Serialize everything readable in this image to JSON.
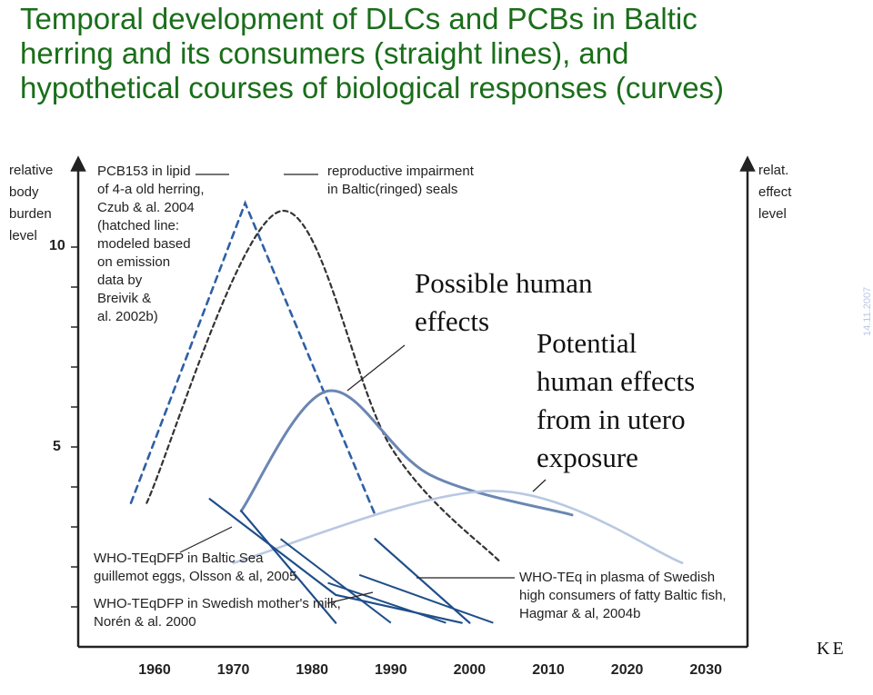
{
  "slide": {
    "title_lines": [
      "Temporal development of DLCs and PCBs in Baltic",
      "herring and its consumers (straight lines), and",
      "hypothetical courses of biological responses (curves)"
    ],
    "date": "14.11.2007",
    "logo": "ΚΕ",
    "colors": {
      "title": "#1a6e1a",
      "line": "#1f4e8a",
      "curve": "#6b86b3",
      "curve_light": "#b9c8e2",
      "dashed": "#2e5fa6",
      "dashed_black": "#333333"
    }
  },
  "chart_data": {
    "type": "line",
    "ylabel_left": [
      "relative",
      "body",
      "burden",
      "level"
    ],
    "ylabel_right": [
      "relat.",
      "effect",
      "level"
    ],
    "x_ticks": [
      "1960",
      "1970",
      "1980",
      "1990",
      "2000",
      "2010",
      "2020",
      "2030"
    ],
    "y_ticks": [
      "10",
      "5"
    ],
    "xlim": [
      1950,
      2035
    ],
    "ylim": [
      0,
      11
    ],
    "annotations": {
      "pcb153": [
        "PCB153 in lipid",
        "of 4-a old herring,",
        "Czub & al. 2004",
        "(hatched line:",
        "modeled based",
        "on emission",
        "data by",
        "Breivik &",
        "al. 2002b)"
      ],
      "repro": [
        "reproductive impairment",
        "in Baltic(ringed) seals"
      ],
      "guillemot": [
        "WHO-TEqDFP in Baltic Sea",
        "guillemot eggs, Olsson & al, 2005"
      ],
      "mothers": [
        "WHO-TEqDFP in Swedish mother's milk,",
        "Norén & al. 2000"
      ],
      "plasma": [
        "WHO-TEq in plasma of Swedish",
        "high consumers of fatty Baltic fish,",
        "Hagmar & al, 2004b"
      ],
      "possible": [
        "Possible human",
        "effects"
      ],
      "potential": [
        "Potential",
        "human effects",
        "from in utero",
        "exposure"
      ]
    },
    "series": [
      {
        "name": "PCB153 in lipid of 4-a old herring",
        "style": "dashed",
        "x": [
          1957,
          1971.5,
          1988
        ],
        "y": [
          3.6,
          11.1,
          3.3
        ]
      },
      {
        "name": "reproductive impairment in Baltic(ringed) seals",
        "style": "dashed",
        "x": [
          1959,
          1976,
          1990,
          2004
        ],
        "y": [
          3.6,
          10.9,
          5.0,
          2.1
        ]
      },
      {
        "name": "Possible human effects",
        "style": "curve",
        "x": [
          1971,
          1982,
          1995,
          2013
        ],
        "y": [
          3.4,
          6.4,
          4.3,
          3.3
        ]
      },
      {
        "name": "Potential human effects from in utero exposure",
        "style": "curve",
        "x": [
          1970,
          2003,
          2027
        ],
        "y": [
          2.1,
          3.9,
          2.1
        ]
      },
      {
        "name": "WHO-TEq in Baltic Sea guillemot eggs",
        "style": "solid",
        "x": [
          1967,
          1983,
          1999
        ],
        "y": [
          3.7,
          1.3,
          0.6
        ]
      },
      {
        "name": "WHO-TEq in Swedish mother's milk",
        "style": "solid",
        "x": [
          1971,
          1983
        ],
        "y": [
          3.4,
          0.6
        ]
      },
      {
        "name": "WHO-TEq in plasma of Swedish high consumers",
        "style": "solid",
        "x": [
          1988,
          2000
        ],
        "y": [
          2.7,
          0.6
        ]
      }
    ]
  }
}
